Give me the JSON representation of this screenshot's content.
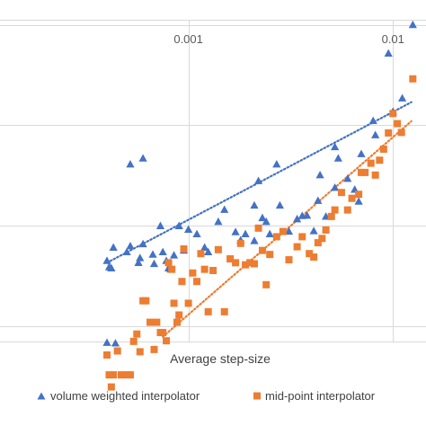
{
  "chart_data": {
    "type": "scatter",
    "title": "",
    "xlabel": "Average step-size",
    "ylabel": "",
    "x_scale": "log",
    "xlim": [
      0.00012,
      0.0145
    ],
    "y_scale": "log",
    "ylim_exponent": [
      -3.15,
      0.05
    ],
    "x_tick_labels": [
      {
        "value": 0.001,
        "label": "0.001"
      },
      {
        "value": 0.01,
        "label": "0.01"
      }
    ],
    "y_gridlines_exponent": [
      0,
      -1,
      -2,
      -3
    ],
    "grid": true,
    "legend_position": "bottom",
    "trendlines": "linear dotted, one per series",
    "series": [
      {
        "name": "volume weighted interpolator",
        "marker": "triangle",
        "color": "#4472C4",
        "trend": {
          "x": [
            0.0004,
            0.0123
          ],
          "y": [
            0.0043,
            0.17
          ]
        },
        "points": [
          {
            "x": 0.0004,
            "y": 0.0045
          },
          {
            "x": 0.00041,
            "y": 0.0039
          },
          {
            "x": 0.00043,
            "y": 0.0061
          },
          {
            "x": 0.00042,
            "y": 0.0038
          },
          {
            "x": 0.0004,
            "y": 0.00069
          },
          {
            "x": 0.00044,
            "y": 0.00068
          },
          {
            "x": 0.0005,
            "y": 0.0055
          },
          {
            "x": 0.00052,
            "y": 0.0063
          },
          {
            "x": 0.00052,
            "y": 0.041
          },
          {
            "x": 0.00057,
            "y": 0.0043
          },
          {
            "x": 0.00058,
            "y": 0.0048
          },
          {
            "x": 0.0006,
            "y": 0.047
          },
          {
            "x": 0.0006,
            "y": 0.0066
          },
          {
            "x": 0.00067,
            "y": 0.0052
          },
          {
            "x": 0.00068,
            "y": 0.0042
          },
          {
            "x": 0.00073,
            "y": 0.01
          },
          {
            "x": 0.00075,
            "y": 0.0055
          },
          {
            "x": 0.00078,
            "y": 0.0045
          },
          {
            "x": 0.0008,
            "y": 0.0038
          },
          {
            "x": 0.00082,
            "y": 0.0037
          },
          {
            "x": 0.00085,
            "y": 0.0051
          },
          {
            "x": 0.0009,
            "y": 0.01
          },
          {
            "x": 0.00095,
            "y": 0.0057
          },
          {
            "x": 0.001,
            "y": 0.0092
          },
          {
            "x": 0.0011,
            "y": 0.0083
          },
          {
            "x": 0.0012,
            "y": 0.0061
          },
          {
            "x": 0.00125,
            "y": 0.0055
          },
          {
            "x": 0.0014,
            "y": 0.011
          },
          {
            "x": 0.0015,
            "y": 0.0145
          },
          {
            "x": 0.0017,
            "y": 0.0087
          },
          {
            "x": 0.0018,
            "y": 0.0072
          },
          {
            "x": 0.0019,
            "y": 0.0083
          },
          {
            "x": 0.0021,
            "y": 0.016
          },
          {
            "x": 0.0021,
            "y": 0.0071
          },
          {
            "x": 0.0022,
            "y": 0.028
          },
          {
            "x": 0.0023,
            "y": 0.012
          },
          {
            "x": 0.0024,
            "y": 0.011
          },
          {
            "x": 0.0025,
            "y": 0.0083
          },
          {
            "x": 0.0027,
            "y": 0.041
          },
          {
            "x": 0.0028,
            "y": 0.016
          },
          {
            "x": 0.0031,
            "y": 0.0088
          },
          {
            "x": 0.0034,
            "y": 0.0117
          },
          {
            "x": 0.0036,
            "y": 0.0126
          },
          {
            "x": 0.0038,
            "y": 0.0127
          },
          {
            "x": 0.0041,
            "y": 0.0089
          },
          {
            "x": 0.0043,
            "y": 0.0178
          },
          {
            "x": 0.0044,
            "y": 0.032
          },
          {
            "x": 0.0047,
            "y": 0.0124
          },
          {
            "x": 0.0052,
            "y": 0.061
          },
          {
            "x": 0.0052,
            "y": 0.024
          },
          {
            "x": 0.0054,
            "y": 0.047
          },
          {
            "x": 0.006,
            "y": 0.0295
          },
          {
            "x": 0.0065,
            "y": 0.023
          },
          {
            "x": 0.0068,
            "y": 0.0175
          },
          {
            "x": 0.007,
            "y": 0.052
          },
          {
            "x": 0.008,
            "y": 0.111
          },
          {
            "x": 0.0082,
            "y": 0.08
          },
          {
            "x": 0.0095,
            "y": 0.52
          },
          {
            "x": 0.01,
            "y": 0.137
          },
          {
            "x": 0.0111,
            "y": 0.186
          },
          {
            "x": 0.0125,
            "y": 1.0
          }
        ]
      },
      {
        "name": "mid-point interpolator",
        "marker": "square",
        "color": "#ED7D31",
        "trend": {
          "x": [
            0.00075,
            0.0123
          ],
          "y": [
            0.00079,
            0.11
          ]
        },
        "points": [
          {
            "x": 0.0004,
            "y": 0.00052
          },
          {
            "x": 0.00041,
            "y": 0.00033
          },
          {
            "x": 0.00042,
            "y": 0.00025
          },
          {
            "x": 0.00043,
            "y": 0.00033
          },
          {
            "x": 0.00045,
            "y": 0.00057
          },
          {
            "x": 0.00047,
            "y": 0.00033
          },
          {
            "x": 0.0005,
            "y": 0.00033
          },
          {
            "x": 0.00052,
            "y": 0.00033
          },
          {
            "x": 0.00054,
            "y": 0.00071
          },
          {
            "x": 0.00056,
            "y": 0.00084
          },
          {
            "x": 0.00058,
            "y": 0.00056
          },
          {
            "x": 0.0006,
            "y": 0.0018
          },
          {
            "x": 0.00062,
            "y": 0.0018
          },
          {
            "x": 0.00065,
            "y": 0.0011
          },
          {
            "x": 0.00068,
            "y": 0.00059
          },
          {
            "x": 0.0007,
            "y": 0.0011
          },
          {
            "x": 0.00073,
            "y": 0.00087
          },
          {
            "x": 0.00075,
            "y": 0.00087
          },
          {
            "x": 0.00078,
            "y": 0.00072
          },
          {
            "x": 0.0008,
            "y": 0.0043
          },
          {
            "x": 0.00083,
            "y": 0.0037
          },
          {
            "x": 0.00085,
            "y": 0.0017
          },
          {
            "x": 0.00088,
            "y": 0.0011
          },
          {
            "x": 0.0009,
            "y": 0.0013
          },
          {
            "x": 0.00093,
            "y": 0.0028
          },
          {
            "x": 0.00095,
            "y": 0.0059
          },
          {
            "x": 0.001,
            "y": 0.0017
          },
          {
            "x": 0.00105,
            "y": 0.0034
          },
          {
            "x": 0.0011,
            "y": 0.0028
          },
          {
            "x": 0.00115,
            "y": 0.0053
          },
          {
            "x": 0.0012,
            "y": 0.0037
          },
          {
            "x": 0.00125,
            "y": 0.0014
          },
          {
            "x": 0.00132,
            "y": 0.0036
          },
          {
            "x": 0.0014,
            "y": 0.0058
          },
          {
            "x": 0.0015,
            "y": 0.0014
          },
          {
            "x": 0.0016,
            "y": 0.0047
          },
          {
            "x": 0.0017,
            "y": 0.0043
          },
          {
            "x": 0.0018,
            "y": 0.0067
          },
          {
            "x": 0.0019,
            "y": 0.0041
          },
          {
            "x": 0.002,
            "y": 0.0043
          },
          {
            "x": 0.0021,
            "y": 0.0042
          },
          {
            "x": 0.0022,
            "y": 0.0095
          },
          {
            "x": 0.0023,
            "y": 0.0057
          },
          {
            "x": 0.0024,
            "y": 0.0026
          },
          {
            "x": 0.0025,
            "y": 0.0052
          },
          {
            "x": 0.0027,
            "y": 0.0078
          },
          {
            "x": 0.0029,
            "y": 0.0088
          },
          {
            "x": 0.0031,
            "y": 0.0046
          },
          {
            "x": 0.0034,
            "y": 0.0062
          },
          {
            "x": 0.0036,
            "y": 0.0078
          },
          {
            "x": 0.0039,
            "y": 0.0053
          },
          {
            "x": 0.0041,
            "y": 0.0049
          },
          {
            "x": 0.0043,
            "y": 0.0068
          },
          {
            "x": 0.0045,
            "y": 0.0075
          },
          {
            "x": 0.0047,
            "y": 0.0091
          },
          {
            "x": 0.005,
            "y": 0.0124
          },
          {
            "x": 0.0052,
            "y": 0.0144
          },
          {
            "x": 0.0056,
            "y": 0.0215
          },
          {
            "x": 0.006,
            "y": 0.0144
          },
          {
            "x": 0.0063,
            "y": 0.0188
          },
          {
            "x": 0.0068,
            "y": 0.0206
          },
          {
            "x": 0.007,
            "y": 0.034
          },
          {
            "x": 0.0073,
            "y": 0.034
          },
          {
            "x": 0.0078,
            "y": 0.042
          },
          {
            "x": 0.0082,
            "y": 0.032
          },
          {
            "x": 0.0086,
            "y": 0.045
          },
          {
            "x": 0.009,
            "y": 0.058
          },
          {
            "x": 0.0095,
            "y": 0.084
          },
          {
            "x": 0.01,
            "y": 0.131
          },
          {
            "x": 0.0105,
            "y": 0.104
          },
          {
            "x": 0.011,
            "y": 0.085
          },
          {
            "x": 0.0125,
            "y": 0.29
          }
        ]
      }
    ]
  }
}
